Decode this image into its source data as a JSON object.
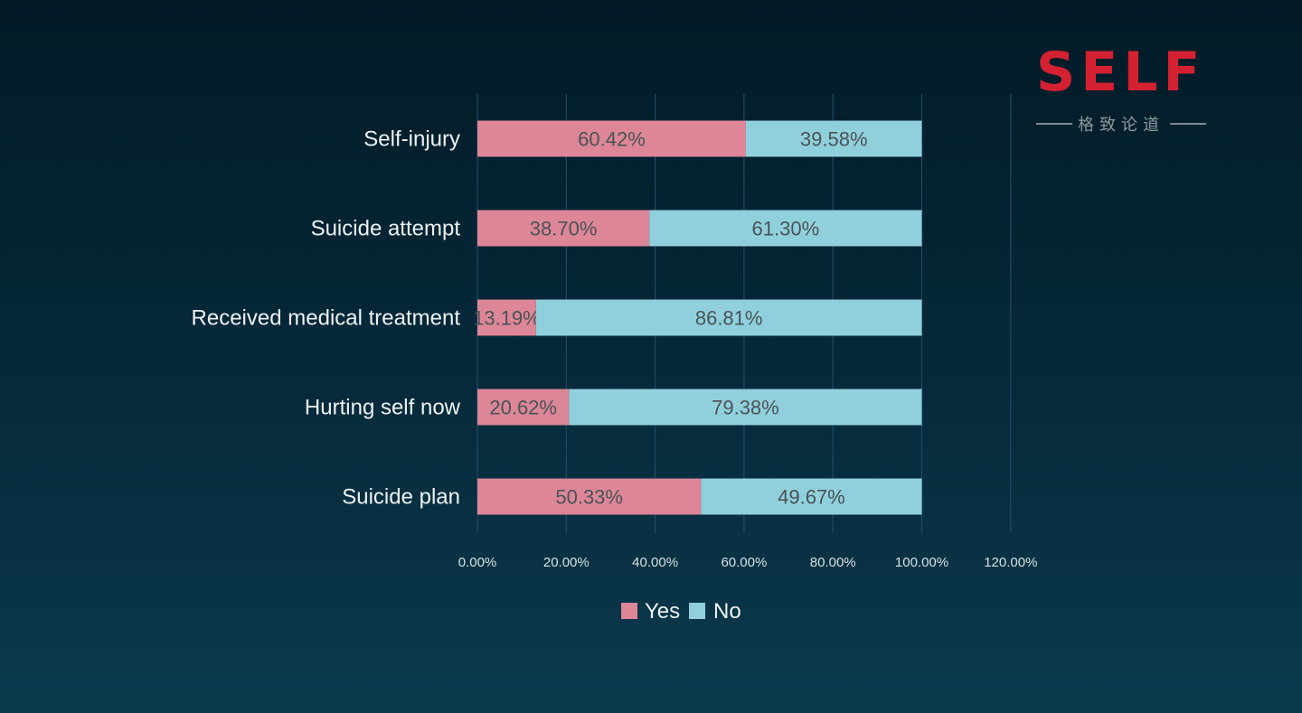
{
  "logo": {
    "word": "SELF",
    "tagline": "格致论道"
  },
  "colors": {
    "yes": "#dc8698",
    "no": "#90d0dc",
    "grid": "#1d4a66",
    "logo_red": "#d32131"
  },
  "chart_data": {
    "type": "bar",
    "orientation": "horizontal",
    "stacked": true,
    "title": "",
    "categories": [
      "Self-injury",
      "Suicide attempt",
      "Received medical treatment",
      "Hurting self now",
      "Suicide plan"
    ],
    "series": [
      {
        "name": "Yes",
        "values": [
          60.42,
          38.7,
          13.19,
          20.62,
          50.33
        ],
        "labels": [
          "60.42%",
          "38.70%",
          "13.19%",
          "20.62%",
          "50.33%"
        ]
      },
      {
        "name": "No",
        "values": [
          39.58,
          61.3,
          86.81,
          79.38,
          49.67
        ],
        "labels": [
          "39.58%",
          "61.30%",
          "86.81%",
          "79.38%",
          "49.67%"
        ]
      }
    ],
    "xlim": [
      0,
      120
    ],
    "xticks": [
      0,
      20,
      40,
      60,
      80,
      100,
      120
    ],
    "xtick_labels": [
      "0.00%",
      "20.00%",
      "40.00%",
      "60.00%",
      "80.00%",
      "100.00%",
      "120.00%"
    ],
    "grid": "vertical",
    "legend": "bottom-center"
  }
}
